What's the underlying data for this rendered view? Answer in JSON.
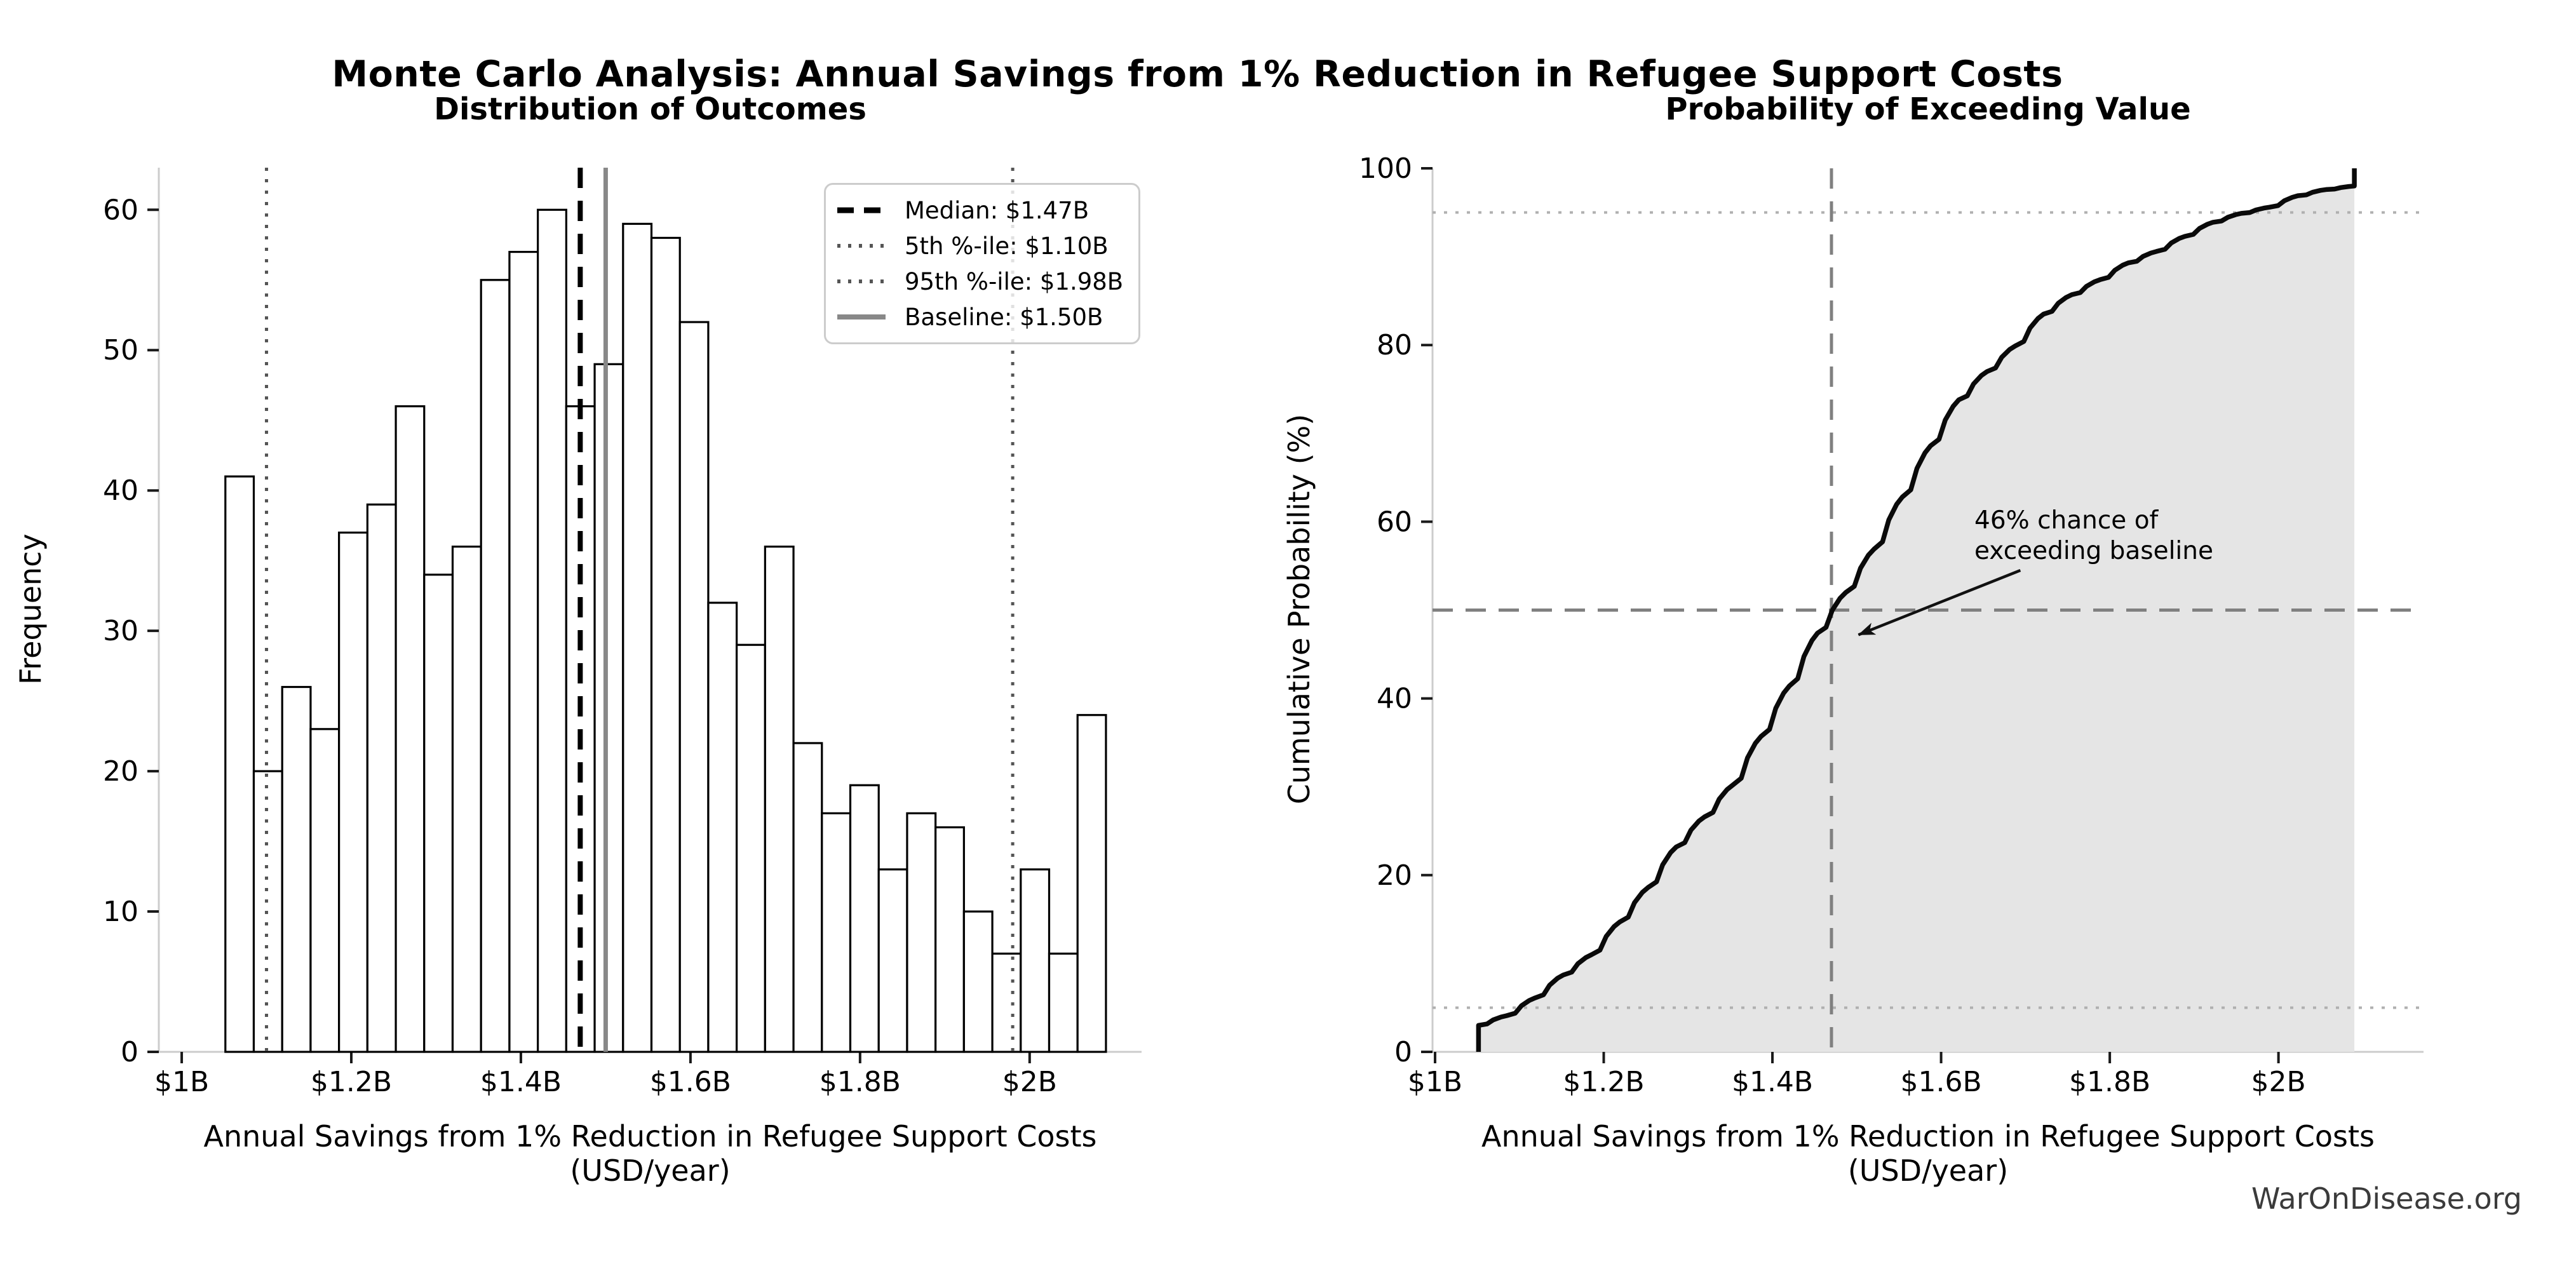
{
  "figure": {
    "title": "Monte Carlo Analysis: Annual Savings from 1% Reduction in Refugee Support Costs",
    "watermark": "WarOnDisease.org"
  },
  "colors": {
    "background": "#ffffff",
    "bar_fill": "#ffffff",
    "bar_edge": "#000000",
    "cdf_line": "#0a0a0a",
    "cdf_fill": "#e5e5e5",
    "spine": "#cccccc",
    "tick": "#1a1a1a",
    "text": "#000000",
    "watermark": "#3b3b3b",
    "legend_border": "#cccccc"
  },
  "chart_data": [
    {
      "type": "bar",
      "title": "Distribution of Outcomes",
      "xlabel": "Annual Savings from 1% Reduction in Refugee Support Costs (USD/year)",
      "ylabel": "Frequency",
      "grid": false,
      "xlim": [
        0.973,
        2.132
      ],
      "ylim": [
        0,
        63
      ],
      "histogram": {
        "bin_start": 1.0515,
        "bin_width": 0.0335,
        "counts": [
          41,
          20,
          26,
          23,
          37,
          39,
          46,
          34,
          36,
          55,
          57,
          60,
          46,
          49,
          59,
          58,
          52,
          32,
          29,
          36,
          22,
          17,
          19,
          13,
          17,
          16,
          10,
          7,
          13,
          7,
          24
        ]
      },
      "x_ticks": [
        {
          "value": 1.0,
          "label": "$1B"
        },
        {
          "value": 1.2,
          "label": "$1.2B"
        },
        {
          "value": 1.4,
          "label": "$1.4B"
        },
        {
          "value": 1.6,
          "label": "$1.6B"
        },
        {
          "value": 1.8,
          "label": "$1.8B"
        },
        {
          "value": 2.0,
          "label": "$2B"
        }
      ],
      "y_ticks": [
        {
          "value": 0,
          "label": "0"
        },
        {
          "value": 10,
          "label": "10"
        },
        {
          "value": 20,
          "label": "20"
        },
        {
          "value": 30,
          "label": "30"
        },
        {
          "value": 40,
          "label": "40"
        },
        {
          "value": 50,
          "label": "50"
        },
        {
          "value": 60,
          "label": "60"
        }
      ],
      "ref_lines": [
        {
          "value": 1.47,
          "style": "dashed",
          "color": "#000000",
          "width": 8,
          "label": "Median: $1.47B"
        },
        {
          "value": 1.1,
          "style": "dotted",
          "color": "#555555",
          "width": 5,
          "label": "5th %-ile: $1.10B"
        },
        {
          "value": 1.98,
          "style": "dotted",
          "color": "#555555",
          "width": 5,
          "label": "95th %-ile: $1.98B"
        },
        {
          "value": 1.5,
          "style": "solid",
          "color": "#888888",
          "width": 7,
          "label": "Baseline: $1.50B"
        }
      ],
      "legend_position": "upper right"
    },
    {
      "type": "line",
      "title": "Probability of Exceeding Value",
      "xlabel": "Annual Savings from 1% Reduction in Refugee Support Costs (USD/year)",
      "ylabel": "Cumulative Probability (%)",
      "grid": false,
      "xlim": [
        0.997,
        2.172
      ],
      "ylim": [
        0,
        100
      ],
      "x_ticks": [
        {
          "value": 1.0,
          "label": "$1B"
        },
        {
          "value": 1.2,
          "label": "$1.2B"
        },
        {
          "value": 1.4,
          "label": "$1.4B"
        },
        {
          "value": 1.6,
          "label": "$1.6B"
        },
        {
          "value": 1.8,
          "label": "$1.8B"
        },
        {
          "value": 2.0,
          "label": "$2B"
        }
      ],
      "y_ticks": [
        {
          "value": 0,
          "label": "0"
        },
        {
          "value": 20,
          "label": "20"
        },
        {
          "value": 40,
          "label": "40"
        },
        {
          "value": 60,
          "label": "60"
        },
        {
          "value": 80,
          "label": "80"
        },
        {
          "value": 100,
          "label": "100"
        }
      ],
      "cdf": {
        "start_y": 0,
        "end_y": 100,
        "x": [
          1.0515,
          1.085,
          1.1185,
          1.152,
          1.1855,
          1.219,
          1.2525,
          1.286,
          1.3195,
          1.353,
          1.3865,
          1.42,
          1.4535,
          1.487,
          1.5205,
          1.554,
          1.5875,
          1.621,
          1.6545,
          1.688,
          1.7215,
          1.755,
          1.7885,
          1.822,
          1.8555,
          1.889,
          1.9225,
          1.956,
          1.9895,
          2.023,
          2.0565,
          2.09
        ],
        "y": [
          3.0,
          4.1,
          6.1,
          8.7,
          11.0,
          14.7,
          18.6,
          23.2,
          26.6,
          30.2,
          35.7,
          41.4,
          47.4,
          52.0,
          56.9,
          62.8,
          68.6,
          73.8,
          77.0,
          79.9,
          83.5,
          85.7,
          87.4,
          89.3,
          90.6,
          92.3,
          93.9,
          94.9,
          95.6,
          96.9,
          97.6,
          98.0
        ]
      },
      "h_ref_lines": [
        {
          "value": 5,
          "style": "dotted",
          "color": "#b0b0b0",
          "width": 4
        },
        {
          "value": 95,
          "style": "dotted",
          "color": "#b0b0b0",
          "width": 4
        },
        {
          "value": 50,
          "style": "dashed",
          "color": "#808080",
          "width": 5
        }
      ],
      "v_ref_lines": [
        {
          "value": 1.47,
          "style": "dashed",
          "color": "#808080",
          "width": 5
        }
      ],
      "annotation": {
        "text": "46% chance of\nexceeding baseline",
        "arrow_from": [
          1.694,
          54.5
        ],
        "arrow_to": [
          1.502,
          47.2
        ]
      }
    }
  ]
}
